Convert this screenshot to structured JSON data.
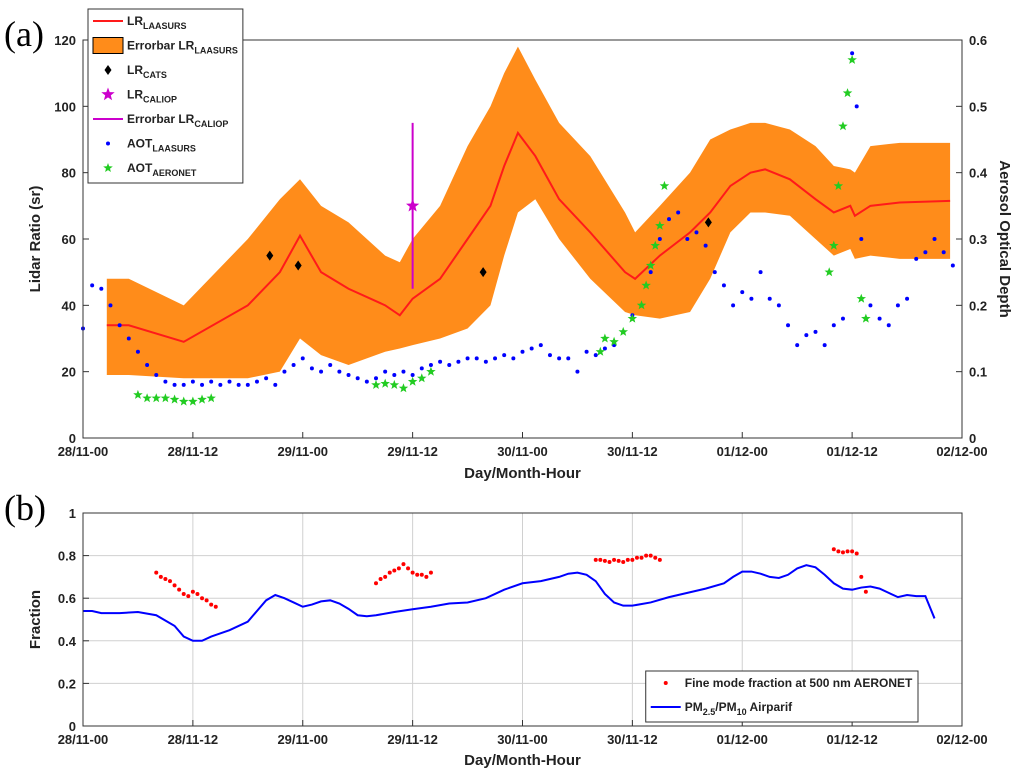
{
  "chart_data": [
    {
      "type": "line",
      "panel_label": "(a)",
      "x_label": "Day/Month-Hour",
      "y_label": "Lidar Ratio (sr)",
      "y2_label": "Aerosol Optical Depth",
      "grid": false,
      "legend": "upper left",
      "xlim": [
        0,
        96
      ],
      "xticks": [
        {
          "value": 0,
          "label": "28/11-00"
        },
        {
          "value": 12,
          "label": "28/11-12"
        },
        {
          "value": 24,
          "label": "29/11-00"
        },
        {
          "value": 36,
          "label": "29/11-12"
        },
        {
          "value": 48,
          "label": "30/11-00"
        },
        {
          "value": 60,
          "label": "30/11-12"
        },
        {
          "value": 72,
          "label": "01/12-00"
        },
        {
          "value": 84,
          "label": "01/12-12"
        },
        {
          "value": 96,
          "label": "02/12-00"
        }
      ],
      "ylim": [
        0,
        120
      ],
      "yticks": [
        0,
        20,
        40,
        60,
        80,
        100,
        120
      ],
      "y2lim": [
        0,
        0.6
      ],
      "y2ticks": [
        0,
        0.1,
        0.2,
        0.3,
        0.4,
        0.5,
        0.6
      ],
      "series": [
        {
          "name": [
            "LR",
            "LAASURS"
          ],
          "kind": "line",
          "color": "#ff1a1a",
          "x": [
            2.6,
            5,
            11,
            18,
            21.5,
            23.7,
            26,
            29,
            33,
            34.6,
            36,
            39,
            42,
            44.5,
            46,
            47.5,
            49.4,
            52,
            55.4,
            59.2,
            60.3,
            63,
            66.3,
            68.5,
            70.7,
            72.9,
            74.5,
            77.2,
            80,
            82,
            83.8,
            84.3,
            86,
            89.2,
            94.7
          ],
          "values": [
            34,
            34,
            29,
            40,
            50,
            61,
            50,
            45,
            40,
            37,
            42,
            48,
            60,
            70,
            82,
            92,
            85,
            72,
            62,
            50,
            48,
            55,
            62,
            68,
            76,
            80,
            81,
            78,
            72,
            68,
            70,
            67,
            70,
            71,
            71.5
          ]
        },
        {
          "name": [
            "Errorbar LR",
            "LAASURS"
          ],
          "kind": "band",
          "color": "#ff8c1a",
          "x": [
            2.6,
            5,
            11,
            18,
            21.5,
            23.7,
            26,
            29,
            33,
            34.6,
            36,
            39,
            42,
            44.5,
            46,
            47.5,
            49.4,
            52,
            55.4,
            59.2,
            60.3,
            63,
            66.3,
            68.5,
            70.7,
            72.9,
            74.5,
            77.2,
            80,
            82,
            83.8,
            84.3,
            86,
            89.2,
            94.7
          ],
          "lower": [
            19,
            19,
            18,
            18,
            20,
            30,
            25,
            22,
            26,
            27,
            28,
            30,
            33,
            40,
            55,
            68,
            72,
            60,
            48,
            38,
            37,
            36,
            38,
            48,
            62,
            68,
            68,
            67,
            60,
            55,
            57,
            54,
            55,
            54,
            54
          ],
          "upper": [
            48,
            48,
            40,
            60,
            72,
            78,
            70,
            65,
            55,
            53,
            60,
            70,
            88,
            100,
            110,
            118,
            108,
            95,
            85,
            68,
            62,
            70,
            80,
            90,
            93,
            95,
            95,
            93,
            88,
            82,
            81,
            80,
            88,
            89,
            89
          ]
        },
        {
          "name": [
            "LR",
            "CATS"
          ],
          "kind": "marker",
          "marker": "diamond",
          "color": "#000000",
          "x": [
            20.4,
            23.5,
            43.7,
            68.3
          ],
          "values": [
            55,
            52,
            50,
            65
          ]
        },
        {
          "name": [
            "LR",
            "CALIOP"
          ],
          "kind": "marker",
          "marker": "star",
          "color": "#cc00cc",
          "x": [
            36
          ],
          "values": [
            70
          ]
        },
        {
          "name": [
            "Errorbar LR",
            "CALIOP"
          ],
          "kind": "errorbar",
          "color": "#cc00cc",
          "x": [
            36
          ],
          "lower": [
            45
          ],
          "upper": [
            95
          ]
        },
        {
          "name": [
            "AOT",
            "LAASURS"
          ],
          "kind": "marker",
          "marker": "dot",
          "axis": "y2",
          "color": "#0000ff",
          "x": [
            0,
            1,
            2,
            3,
            4,
            5,
            6,
            7,
            8,
            9,
            10,
            11,
            12,
            13,
            14,
            15,
            16,
            17,
            18,
            19,
            20,
            21,
            22,
            23,
            24,
            25,
            26,
            27,
            28,
            29,
            30,
            31,
            32,
            33,
            34,
            35,
            36,
            37,
            38,
            39,
            40,
            41,
            42,
            43,
            44,
            45,
            46,
            47,
            48,
            49,
            50,
            51,
            52,
            53,
            54,
            55,
            56,
            57,
            58,
            59,
            60,
            61,
            62,
            63,
            64,
            65,
            66,
            67,
            68,
            69,
            70,
            71,
            72,
            73,
            74,
            75,
            76,
            77,
            78,
            79,
            80,
            81,
            82,
            83,
            84,
            84.5,
            85,
            86,
            87,
            88,
            89,
            90,
            91,
            92,
            93,
            94,
            95
          ],
          "values": [
            0.165,
            0.23,
            0.225,
            0.2,
            0.17,
            0.15,
            0.13,
            0.11,
            0.095,
            0.085,
            0.08,
            0.08,
            0.085,
            0.08,
            0.085,
            0.08,
            0.085,
            0.08,
            0.08,
            0.085,
            0.09,
            0.08,
            0.1,
            0.11,
            0.12,
            0.105,
            0.1,
            0.11,
            0.1,
            0.095,
            0.09,
            0.085,
            0.09,
            0.1,
            0.095,
            0.1,
            0.095,
            0.105,
            0.11,
            0.115,
            0.11,
            0.115,
            0.12,
            0.12,
            0.115,
            0.12,
            0.125,
            0.12,
            0.13,
            0.135,
            0.14,
            0.125,
            0.12,
            0.12,
            0.1,
            0.13,
            0.125,
            0.135,
            0.14,
            0.16,
            0.185,
            0.2,
            0.25,
            0.3,
            0.33,
            0.34,
            0.3,
            0.31,
            0.29,
            0.25,
            0.23,
            0.2,
            0.22,
            0.21,
            0.25,
            0.21,
            0.2,
            0.17,
            0.14,
            0.155,
            0.16,
            0.14,
            0.17,
            0.18,
            0.58,
            0.5,
            0.3,
            0.2,
            0.18,
            0.17,
            0.2,
            0.21,
            0.27,
            0.28,
            0.3,
            0.28,
            0.26
          ]
        },
        {
          "name": [
            "AOT",
            "AERONET"
          ],
          "kind": "marker",
          "marker": "star",
          "axis": "y2",
          "color": "#22cc22",
          "x": [
            6,
            7,
            8,
            9,
            10,
            11,
            12,
            13,
            14,
            32,
            33,
            34,
            35,
            36,
            37,
            38,
            56.5,
            57,
            58,
            59,
            60,
            61,
            61.5,
            62,
            62.5,
            63,
            63.5,
            81.5,
            82,
            82.5,
            83,
            83.5,
            84,
            85,
            85.5
          ],
          "values": [
            0.065,
            0.06,
            0.06,
            0.06,
            0.058,
            0.055,
            0.055,
            0.058,
            0.06,
            0.08,
            0.082,
            0.08,
            0.075,
            0.085,
            0.09,
            0.1,
            0.13,
            0.15,
            0.145,
            0.16,
            0.18,
            0.2,
            0.23,
            0.26,
            0.29,
            0.32,
            0.38,
            0.25,
            0.29,
            0.38,
            0.47,
            0.52,
            0.57,
            0.21,
            0.18
          ]
        }
      ]
    },
    {
      "type": "line",
      "panel_label": "(b)",
      "x_label": "Day/Month-Hour",
      "y_label": "Fraction",
      "grid": true,
      "legend": "lower right",
      "xlim": [
        0,
        96
      ],
      "xticks": [
        {
          "value": 0,
          "label": "28/11-00"
        },
        {
          "value": 12,
          "label": "28/11-12"
        },
        {
          "value": 24,
          "label": "29/11-00"
        },
        {
          "value": 36,
          "label": "29/11-12"
        },
        {
          "value": 48,
          "label": "30/11-00"
        },
        {
          "value": 60,
          "label": "30/11-12"
        },
        {
          "value": 72,
          "label": "01/12-00"
        },
        {
          "value": 84,
          "label": "01/12-12"
        },
        {
          "value": 96,
          "label": "02/12-00"
        }
      ],
      "ylim": [
        0,
        1
      ],
      "yticks": [
        0,
        0.2,
        0.4,
        0.6,
        0.8,
        1
      ],
      "series": [
        {
          "name": [
            "Fine mode fraction at 500 nm AERONET"
          ],
          "kind": "marker",
          "marker": "dot",
          "color": "#ff0000",
          "x": [
            8,
            8.5,
            9,
            9.5,
            10,
            10.5,
            11,
            11.5,
            12,
            12.5,
            13,
            13.5,
            14,
            14.5,
            32,
            32.5,
            33,
            33.5,
            34,
            34.5,
            35,
            35.5,
            36,
            36.5,
            37,
            37.5,
            38,
            56,
            56.5,
            57,
            57.5,
            58,
            58.5,
            59,
            59.5,
            60,
            60.5,
            61,
            61.5,
            62,
            62.5,
            63,
            82,
            82.5,
            83,
            83.5,
            84,
            84.5,
            85,
            85.5
          ],
          "values": [
            0.72,
            0.7,
            0.69,
            0.68,
            0.66,
            0.64,
            0.62,
            0.61,
            0.63,
            0.62,
            0.6,
            0.59,
            0.57,
            0.56,
            0.67,
            0.69,
            0.7,
            0.72,
            0.73,
            0.74,
            0.76,
            0.74,
            0.72,
            0.71,
            0.71,
            0.7,
            0.72,
            0.78,
            0.78,
            0.775,
            0.77,
            0.78,
            0.775,
            0.77,
            0.78,
            0.78,
            0.79,
            0.79,
            0.8,
            0.8,
            0.79,
            0.78,
            0.83,
            0.82,
            0.815,
            0.82,
            0.82,
            0.81,
            0.7,
            0.63
          ]
        },
        {
          "name": [
            "PM",
            "2.5",
            "/PM",
            "10",
            " Airparif"
          ],
          "kind": "line",
          "color": "#0000ff",
          "x": [
            0,
            1,
            2,
            4,
            6,
            8,
            10,
            11,
            12,
            13,
            14,
            16,
            18,
            19,
            20,
            21,
            22,
            23,
            24,
            25,
            26,
            27,
            28,
            29,
            30,
            31,
            32,
            34,
            36,
            38,
            40,
            42,
            44,
            46,
            48,
            50,
            52,
            53,
            54,
            55,
            56,
            57,
            58,
            59,
            60,
            62,
            64,
            66,
            68,
            70,
            71,
            72,
            73,
            74,
            75,
            76,
            77,
            78,
            79,
            80,
            81,
            82,
            83,
            84,
            85,
            86,
            87,
            88,
            89,
            90,
            91,
            92,
            93
          ],
          "values": [
            0.54,
            0.54,
            0.53,
            0.53,
            0.535,
            0.52,
            0.47,
            0.42,
            0.4,
            0.4,
            0.42,
            0.45,
            0.49,
            0.54,
            0.59,
            0.615,
            0.6,
            0.58,
            0.56,
            0.57,
            0.585,
            0.59,
            0.575,
            0.55,
            0.52,
            0.515,
            0.52,
            0.535,
            0.548,
            0.56,
            0.575,
            0.58,
            0.6,
            0.64,
            0.67,
            0.68,
            0.7,
            0.715,
            0.72,
            0.71,
            0.68,
            0.62,
            0.58,
            0.565,
            0.565,
            0.58,
            0.605,
            0.625,
            0.645,
            0.67,
            0.7,
            0.725,
            0.725,
            0.715,
            0.7,
            0.695,
            0.71,
            0.74,
            0.755,
            0.745,
            0.71,
            0.67,
            0.645,
            0.64,
            0.65,
            0.655,
            0.645,
            0.625,
            0.605,
            0.615,
            0.61,
            0.61,
            0.505
          ]
        }
      ]
    }
  ]
}
